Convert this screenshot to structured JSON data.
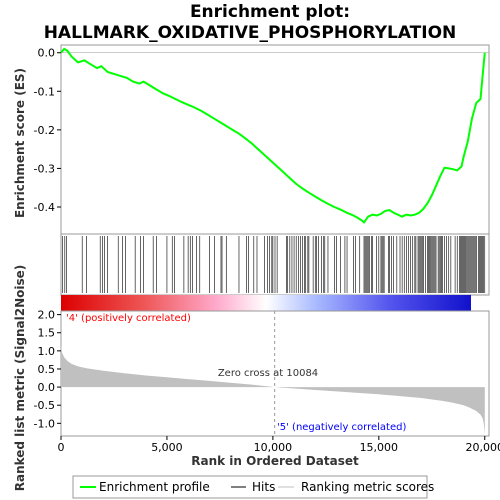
{
  "chart_data": {
    "type": "line",
    "title_line1": "Enrichment plot:",
    "title_line2": "HALLMARK_OXIDATIVE_PHOSPHORYLATION",
    "top_panel": {
      "ylabel": "Enrichment score (ES)",
      "ylim": [
        -0.47,
        0.02
      ],
      "yticks": [
        0.0,
        -0.1,
        -0.2,
        -0.3,
        -0.4
      ],
      "ytick_labels": [
        "0.0",
        "-0.1",
        "-0.2",
        "-0.3",
        "-0.4"
      ],
      "series": [
        {
          "name": "Enrichment profile",
          "color": "#00ff00",
          "x": [
            0,
            150,
            300,
            500,
            800,
            1100,
            1400,
            1700,
            1900,
            2200,
            2500,
            2800,
            3100,
            3400,
            3700,
            3900,
            4200,
            4500,
            4800,
            5100,
            5400,
            5700,
            6000,
            6300,
            6600,
            6900,
            7200,
            7500,
            7800,
            8100,
            8400,
            8700,
            9000,
            9300,
            9600,
            9900,
            10200,
            10500,
            10800,
            11100,
            11400,
            11700,
            12000,
            12300,
            12600,
            12900,
            13200,
            13500,
            13800,
            14000,
            14200,
            14300,
            14500,
            14700,
            14900,
            15100,
            15300,
            15500,
            15700,
            15900,
            16100,
            16300,
            16500,
            16700,
            16900,
            17100,
            17300,
            17500,
            17700,
            17900,
            18100,
            18300,
            18500,
            18700,
            18900,
            19000,
            19200,
            19400,
            19600,
            19800,
            19900,
            20000
          ],
          "y": [
            0.0,
            0.01,
            0.005,
            -0.01,
            -0.025,
            -0.02,
            -0.03,
            -0.04,
            -0.035,
            -0.05,
            -0.055,
            -0.06,
            -0.065,
            -0.075,
            -0.08,
            -0.075,
            -0.085,
            -0.095,
            -0.105,
            -0.112,
            -0.12,
            -0.128,
            -0.135,
            -0.142,
            -0.15,
            -0.16,
            -0.17,
            -0.18,
            -0.19,
            -0.2,
            -0.21,
            -0.222,
            -0.235,
            -0.25,
            -0.265,
            -0.28,
            -0.295,
            -0.31,
            -0.325,
            -0.34,
            -0.352,
            -0.363,
            -0.373,
            -0.383,
            -0.392,
            -0.4,
            -0.407,
            -0.415,
            -0.422,
            -0.428,
            -0.435,
            -0.44,
            -0.425,
            -0.42,
            -0.422,
            -0.418,
            -0.41,
            -0.408,
            -0.415,
            -0.42,
            -0.425,
            -0.42,
            -0.422,
            -0.42,
            -0.415,
            -0.405,
            -0.39,
            -0.37,
            -0.345,
            -0.32,
            -0.298,
            -0.3,
            -0.302,
            -0.305,
            -0.295,
            -0.27,
            -0.23,
            -0.17,
            -0.13,
            -0.12,
            -0.06,
            0.0
          ]
        }
      ]
    },
    "hits_panel": {
      "legend_label": "Hits",
      "hit_positions": [
        80,
        180,
        260,
        1000,
        1200,
        1850,
        1950,
        2050,
        2200,
        2700,
        2900,
        3050,
        3500,
        3750,
        3900,
        4350,
        4500,
        5000,
        5250,
        5350,
        5800,
        6000,
        6100,
        6200,
        6400,
        6550,
        7000,
        7250,
        7550,
        7600,
        7800,
        8400,
        8750,
        8850,
        9100,
        9250,
        9600,
        9750,
        9850,
        9950,
        10000,
        10100,
        10200,
        10650,
        10700,
        10800,
        10900,
        11000,
        11100,
        11200,
        11300,
        11400,
        11500,
        11550,
        11650,
        11700,
        11900,
        12000,
        12050,
        12150,
        12300,
        12400,
        12450,
        12600,
        12900,
        13000,
        13200,
        13400,
        13500,
        13800,
        13900,
        14100,
        14300,
        14350,
        14400,
        14450,
        14500,
        14550,
        14650,
        14700,
        14900,
        15000,
        15100,
        15150,
        15200,
        15250,
        15450,
        15500,
        15600,
        15700,
        15850,
        16000,
        16100,
        16200,
        16300,
        16400,
        16500,
        16600,
        16700,
        16750,
        16850,
        16900,
        16950,
        17000,
        17050,
        17100,
        17200,
        17300,
        17350,
        17400,
        17450,
        17500,
        17550,
        17600,
        17650,
        17700,
        17800,
        17850,
        17900,
        17950,
        18000,
        18100,
        18200,
        18300,
        18400,
        18600,
        18700,
        18800,
        18850,
        18900,
        18950,
        19000,
        19050,
        19100,
        19150,
        19200,
        19250,
        19300,
        19350,
        19400,
        19450,
        19500,
        19550,
        19600,
        19700,
        19750,
        19800,
        19850,
        19900,
        19950,
        20000
      ]
    },
    "rank_panel": {
      "ylabel": "Ranked list metric (Signal2Noise)",
      "ylim": [
        -1.35,
        2.1
      ],
      "yticks": [
        2.0,
        1.5,
        1.0,
        0.5,
        0.0,
        -0.5,
        -1.0
      ],
      "ytick_labels": [
        "2.0",
        "1.5",
        "1.0",
        "0.5",
        "0.0",
        "-0.5",
        "-1.0"
      ],
      "legend_label": "Ranking metric scores",
      "fill_color": "#c0c0c0",
      "metric_x": [
        0,
        50,
        150,
        300,
        500,
        800,
        1200,
        2000,
        3000,
        4000,
        5000,
        6000,
        7000,
        8000,
        9000,
        10084,
        11000,
        12000,
        13000,
        14000,
        15000,
        16000,
        17000,
        18000,
        18500,
        19000,
        19300,
        19600,
        19800,
        19900,
        19950,
        20000
      ],
      "metric_y": [
        1.15,
        0.95,
        0.82,
        0.72,
        0.64,
        0.57,
        0.52,
        0.45,
        0.38,
        0.32,
        0.27,
        0.22,
        0.17,
        0.12,
        0.07,
        0.0,
        -0.04,
        -0.08,
        -0.12,
        -0.16,
        -0.2,
        -0.25,
        -0.3,
        -0.38,
        -0.43,
        -0.5,
        -0.57,
        -0.66,
        -0.76,
        -0.86,
        -1.0,
        -1.3
      ],
      "zero_cross_label": "Zero cross at 10084",
      "zero_cross_value": 10084,
      "pos_label": "'4' (positively correlated)",
      "neg_label": "'5' (negatively correlated)",
      "pos_label_color": "#ff0000",
      "neg_label_color": "#0000ff"
    },
    "xlabel": "Rank in Ordered Dataset",
    "xlim": [
      0,
      20200
    ],
    "xticks": [
      0,
      5000,
      10000,
      15000,
      20000
    ],
    "xtick_labels": [
      "0",
      "5,000",
      "10,000",
      "15,000",
      "20,000"
    ],
    "legend": {
      "items": [
        "Enrichment profile",
        "Hits",
        "Ranking metric scores"
      ],
      "placement": "bottom"
    }
  }
}
